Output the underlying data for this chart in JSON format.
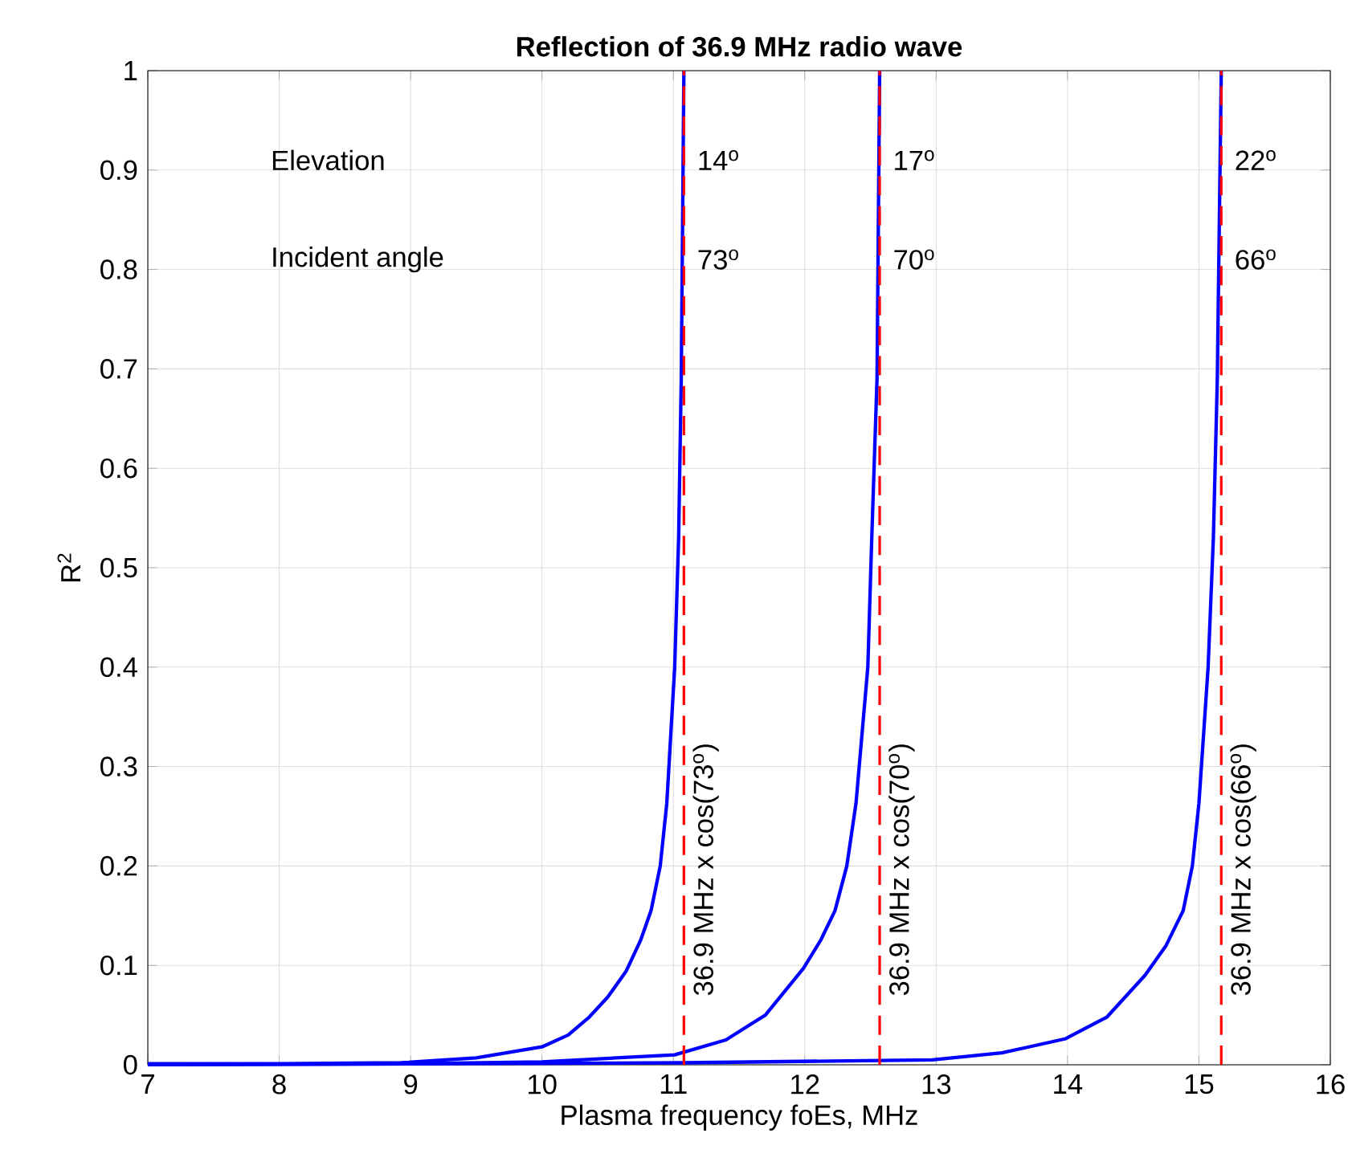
{
  "chart_data": {
    "type": "line",
    "title": "Reflection of 36.9 MHz radio wave",
    "xlabel": "Plasma frequency foEs, MHz",
    "ylabel": "R$^{2}$",
    "xlim": [
      7,
      16
    ],
    "xticks": [
      7,
      8,
      9,
      10,
      11,
      12,
      13,
      14,
      15,
      16
    ],
    "ylim": [
      0,
      1
    ],
    "yticks": [
      0,
      0.1,
      0.2,
      0.3,
      0.4,
      0.5,
      0.6,
      0.7,
      0.8,
      0.9,
      1
    ],
    "grid": true,
    "marker": "none",
    "line_style": "solid",
    "series": [
      {
        "color": "#0000ff",
        "x": [
          7,
          8,
          8.93,
          9.5,
          10.0,
          10.2,
          10.36,
          10.5,
          10.64,
          10.75,
          10.83,
          10.9,
          10.95,
          11.01,
          11.04,
          11.06,
          11.08
        ],
        "values": [
          0.001,
          0.001,
          0.002,
          0.007,
          0.018,
          0.03,
          0.048,
          0.068,
          0.094,
          0.125,
          0.155,
          0.2,
          0.263,
          0.4,
          0.53,
          0.69,
          1
        ]
      },
      {
        "color": "#0000ff",
        "x": [
          7,
          9,
          10,
          11.01,
          11.4,
          11.7,
          11.99,
          12.12,
          12.23,
          12.32,
          12.39,
          12.48,
          12.51,
          12.55,
          12.57
        ],
        "values": [
          0,
          0.001,
          0.003,
          0.01,
          0.025,
          0.05,
          0.097,
          0.125,
          0.155,
          0.2,
          0.263,
          0.4,
          0.53,
          0.69,
          1
        ]
      },
      {
        "color": "#0000ff",
        "x": [
          7,
          11.08,
          12.97,
          13.5,
          13.98,
          14.3,
          14.59,
          14.75,
          14.88,
          14.95,
          15.0,
          15.07,
          15.11,
          15.14,
          15.17
        ],
        "values": [
          0,
          0.002,
          0.005,
          0.012,
          0.026,
          0.048,
          0.09,
          0.12,
          0.155,
          0.2,
          0.263,
          0.4,
          0.53,
          0.69,
          1
        ]
      }
    ],
    "ref_lines": [
      {
        "axis": "x",
        "value": 11.08,
        "label": "36.9 MHz x cos(73$^{o}$)",
        "color": "#ff0000",
        "line_style": "dashed"
      },
      {
        "axis": "x",
        "value": 12.57,
        "label": "36.9 MHz x cos(70$^{o}$)",
        "color": "#ff0000",
        "line_style": "dashed"
      },
      {
        "axis": "x",
        "value": 15.17,
        "label": "36.9 MHz x cos(66$^{o}$)",
        "color": "#ff0000",
        "line_style": "dashed"
      }
    ],
    "annotations": [
      "Elevation",
      "Incident angle",
      {
        "text": "14$^{o}$",
        "x": 11.08,
        "y": 0.91
      },
      {
        "text": "73$^{o}$",
        "x": 11.08,
        "y": 0.81
      },
      {
        "text": "17$^{o}$",
        "x": 12.57,
        "y": 0.91
      },
      {
        "text": "70$^{o}$",
        "x": 12.57,
        "y": 0.81
      },
      {
        "text": "22$^{o}$",
        "x": 15.17,
        "y": 0.91
      },
      {
        "text": "66$^{o}$",
        "x": 15.17,
        "y": 0.81
      }
    ]
  }
}
